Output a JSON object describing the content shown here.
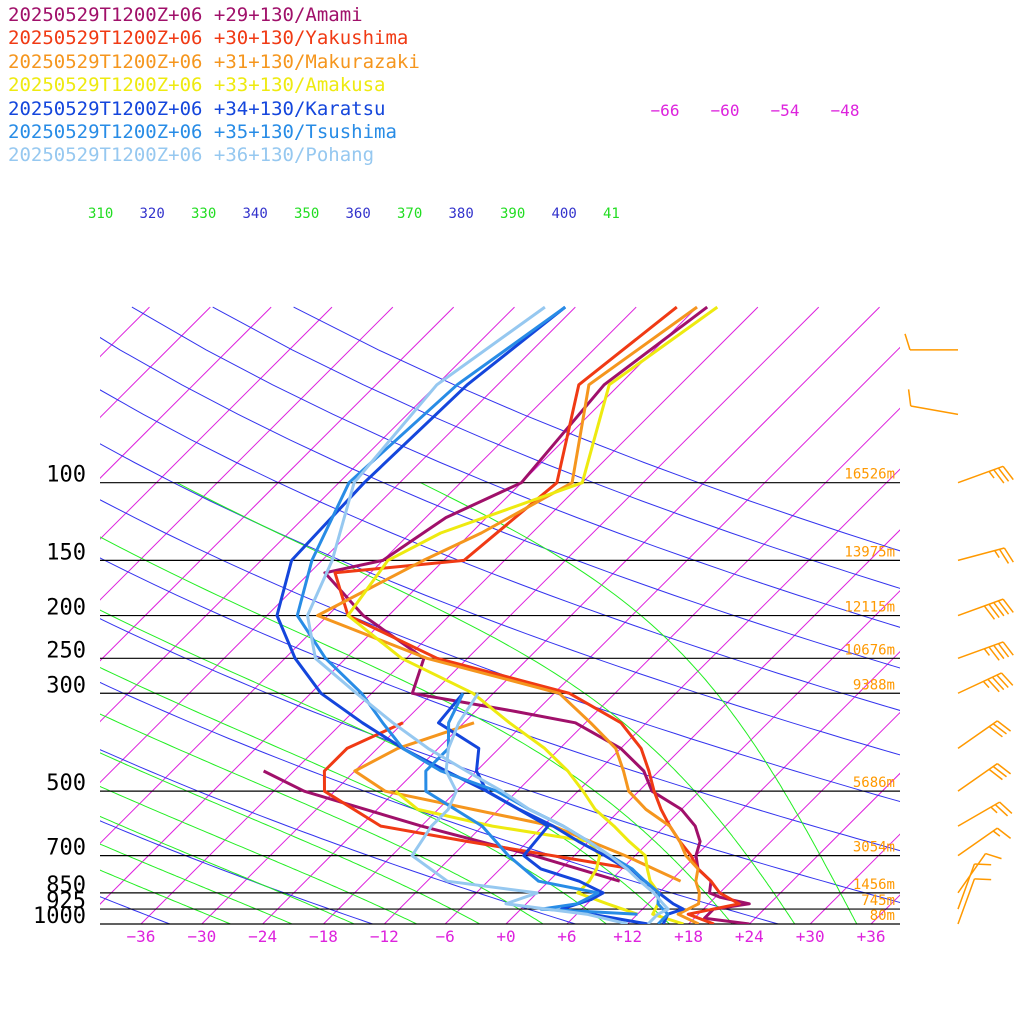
{
  "chart_data": {
    "type": "line",
    "chart_kind": "skew-T log-p sounding",
    "legend": [
      {
        "label": "20250529T1200Z+06 +29+130/Amami",
        "color": "#a0106a"
      },
      {
        "label": "20250529T1200Z+06 +30+130/Yakushima",
        "color": "#f03a14"
      },
      {
        "label": "20250529T1200Z+06 +31+130/Makurazaki",
        "color": "#f5961e"
      },
      {
        "label": "20250529T1200Z+06 +33+130/Amakusa",
        "color": "#eeea10"
      },
      {
        "label": "20250529T1200Z+06 +34+130/Karatsu",
        "color": "#1446dc"
      },
      {
        "label": "20250529T1200Z+06 +35+130/Tsushima",
        "color": "#288ce6"
      },
      {
        "label": "20250529T1200Z+06 +36+130/Pohang",
        "color": "#96c8f0"
      }
    ],
    "pressure_levels": [
      {
        "p": 100,
        "label": "100",
        "height": "16526m"
      },
      {
        "p": 150,
        "label": "150",
        "height": "13975m"
      },
      {
        "p": 200,
        "label": "200",
        "height": "12115m"
      },
      {
        "p": 250,
        "label": "250",
        "height": "10676m"
      },
      {
        "p": 300,
        "label": "300",
        "height": "9388m"
      },
      {
        "p": 500,
        "label": "500",
        "height": "5686m"
      },
      {
        "p": 700,
        "label": "700",
        "height": "3054m"
      },
      {
        "p": 850,
        "label": "850",
        "height": "1456m"
      },
      {
        "p": 925,
        "label": "925",
        "height": "745m"
      },
      {
        "p": 1000,
        "label": "1000",
        "height": "80m"
      }
    ],
    "temperature_ticks": [
      {
        "t": -36,
        "label": "−36"
      },
      {
        "t": -30,
        "label": "−30"
      },
      {
        "t": -24,
        "label": "−24"
      },
      {
        "t": -18,
        "label": "−18"
      },
      {
        "t": -12,
        "label": "−12"
      },
      {
        "t": -6,
        "label": "−6"
      },
      {
        "t": 0,
        "label": "+0"
      },
      {
        "t": 6,
        "label": "+6"
      },
      {
        "t": 12,
        "label": "+12"
      },
      {
        "t": 18,
        "label": "+18"
      },
      {
        "t": 24,
        "label": "+24"
      },
      {
        "t": 30,
        "label": "+30"
      },
      {
        "t": 36,
        "label": "+36"
      }
    ],
    "upper_isotherm_labels": [
      "−66",
      "−60",
      "−54",
      "−48"
    ],
    "theta_labels": [
      {
        "label": "310",
        "color": "#22dd22"
      },
      {
        "label": "320",
        "color": "#3333cc"
      },
      {
        "label": "330",
        "color": "#22dd22"
      },
      {
        "label": "340",
        "color": "#3333cc"
      },
      {
        "label": "350",
        "color": "#22dd22"
      },
      {
        "label": "360",
        "color": "#3333cc"
      },
      {
        "label": "370",
        "color": "#22dd22"
      },
      {
        "label": "380",
        "color": "#3333cc"
      },
      {
        "label": "390",
        "color": "#22dd22"
      },
      {
        "label": "400",
        "color": "#3333cc"
      },
      {
        "label": "41",
        "color": "#22dd22"
      }
    ],
    "colors": {
      "isobar": "#000000",
      "isotherm": "#dd22dd",
      "dry_adiabat": "#3333ee",
      "moist_adiabat": "#22ee22",
      "height_label": "#ff9900",
      "wind_barb": "#ff9900"
    },
    "series": [
      {
        "name": "20250529T1200Z+06 +29+130/Amami",
        "temperature": [
          [
            1000,
            24
          ],
          [
            970,
            19
          ],
          [
            925,
            19
          ],
          [
            900,
            22
          ],
          [
            870,
            18.5
          ],
          [
            850,
            17
          ],
          [
            800,
            16
          ],
          [
            750,
            13.5
          ],
          [
            700,
            12
          ],
          [
            650,
            11
          ],
          [
            600,
            9
          ],
          [
            550,
            6
          ],
          [
            500,
            1.3
          ],
          [
            450,
            -1.5
          ],
          [
            400,
            -6
          ],
          [
            350,
            -13
          ],
          [
            330,
            -20
          ],
          [
            300,
            -32
          ],
          [
            250,
            -34.3
          ],
          [
            200,
            -44.5
          ],
          [
            160,
            -52.5
          ],
          [
            150,
            -48
          ],
          [
            120,
            -46
          ],
          [
            100,
            -42
          ],
          [
            60,
            -43.5
          ],
          [
            40,
            -41
          ]
        ],
        "dewpoint": [
          [
            800,
            7
          ],
          [
            700,
            -4
          ],
          [
            600,
            -18
          ],
          [
            500,
            -33
          ],
          [
            450,
            -39
          ]
        ]
      },
      {
        "name": "20250529T1200Z+06 +30+130/Yakushima",
        "temperature": [
          [
            1000,
            20.5
          ],
          [
            950,
            17
          ],
          [
            900,
            21
          ],
          [
            850,
            18
          ],
          [
            800,
            16
          ],
          [
            750,
            13.5
          ],
          [
            700,
            11.5
          ],
          [
            650,
            9
          ],
          [
            600,
            6.5
          ],
          [
            550,
            4
          ],
          [
            500,
            1.5
          ],
          [
            450,
            -1
          ],
          [
            400,
            -4
          ],
          [
            350,
            -8.5
          ],
          [
            300,
            -16.5
          ],
          [
            250,
            -33
          ],
          [
            200,
            -46
          ],
          [
            160,
            -51.5
          ],
          [
            150,
            -40
          ],
          [
            100,
            -38.5
          ],
          [
            60,
            -46
          ],
          [
            40,
            -44
          ]
        ],
        "dewpoint": [
          [
            750,
            7
          ],
          [
            650,
            -12
          ],
          [
            600,
            -22
          ],
          [
            500,
            -31
          ],
          [
            450,
            -33
          ],
          [
            400,
            -33
          ],
          [
            350,
            -30
          ]
        ]
      },
      {
        "name": "20250529T1200Z+06 +31+130/Makurazaki",
        "temperature": [
          [
            1000,
            19
          ],
          [
            950,
            16
          ],
          [
            900,
            17
          ],
          [
            850,
            16
          ],
          [
            800,
            14.5
          ],
          [
            750,
            13.5
          ],
          [
            700,
            11
          ],
          [
            650,
            9
          ],
          [
            600,
            6.5
          ],
          [
            550,
            2.5
          ],
          [
            500,
            -1
          ],
          [
            450,
            -3.5
          ],
          [
            400,
            -6.5
          ],
          [
            350,
            -11.5
          ],
          [
            300,
            -17.5
          ],
          [
            250,
            -34
          ],
          [
            200,
            -49
          ],
          [
            150,
            -44
          ],
          [
            130,
            -41
          ],
          [
            100,
            -37
          ],
          [
            60,
            -45
          ],
          [
            40,
            -42
          ]
        ],
        "dewpoint": [
          [
            800,
            13
          ],
          [
            700,
            5
          ],
          [
            600,
            -5
          ],
          [
            500,
            -25
          ],
          [
            450,
            -30
          ],
          [
            400,
            -28
          ],
          [
            350,
            -23
          ]
        ]
      },
      {
        "name": "20250529T1200Z+06 +33+130/Amakusa",
        "temperature": [
          [
            1000,
            17.5
          ],
          [
            950,
            13.5
          ],
          [
            900,
            13
          ],
          [
            850,
            12
          ],
          [
            800,
            10
          ],
          [
            750,
            8.5
          ],
          [
            700,
            7
          ],
          [
            650,
            4
          ],
          [
            600,
            1
          ],
          [
            550,
            -2.5
          ],
          [
            500,
            -5.5
          ],
          [
            450,
            -9
          ],
          [
            400,
            -13.5
          ],
          [
            350,
            -19.5
          ],
          [
            300,
            -26
          ],
          [
            250,
            -36.5
          ],
          [
            200,
            -46
          ],
          [
            150,
            -47.5
          ],
          [
            130,
            -45
          ],
          [
            100,
            -36
          ],
          [
            60,
            -43
          ],
          [
            40,
            -40
          ]
        ],
        "dewpoint": [
          [
            950,
            12
          ],
          [
            900,
            8
          ],
          [
            850,
            4
          ],
          [
            800,
            4
          ],
          [
            750,
            3.5
          ],
          [
            700,
            2.5
          ],
          [
            650,
            0
          ],
          [
            600,
            -11
          ],
          [
            550,
            -20
          ],
          [
            500,
            -24
          ]
        ]
      },
      {
        "name": "20250529T1200Z+06 +34+130/Karatsu",
        "temperature": [
          [
            1000,
            15.5
          ],
          [
            950,
            15
          ],
          [
            925,
            16
          ],
          [
            900,
            14.5
          ],
          [
            850,
            12
          ],
          [
            800,
            9.5
          ],
          [
            750,
            6.5
          ],
          [
            700,
            3
          ],
          [
            650,
            -1
          ],
          [
            600,
            -5
          ],
          [
            550,
            -10
          ],
          [
            500,
            -15
          ],
          [
            450,
            -21
          ],
          [
            400,
            -27.5
          ],
          [
            350,
            -34
          ],
          [
            300,
            -41
          ],
          [
            250,
            -47
          ],
          [
            200,
            -53
          ],
          [
            150,
            -57
          ],
          [
            100,
            -57.5
          ],
          [
            60,
            -57
          ],
          [
            40,
            -55
          ]
        ],
        "dewpoint": [
          [
            1000,
            14
          ],
          [
            925,
            4
          ],
          [
            880,
            6
          ],
          [
            850,
            6.5
          ],
          [
            800,
            3
          ],
          [
            750,
            -2
          ],
          [
            700,
            -5
          ],
          [
            600,
            -5.5
          ],
          [
            500,
            -15
          ],
          [
            450,
            -18
          ],
          [
            400,
            -20
          ],
          [
            350,
            -26.5
          ],
          [
            300,
            -27
          ]
        ]
      },
      {
        "name": "20250529T1200Z+06 +35+130/Tsushima",
        "temperature": [
          [
            1000,
            15
          ],
          [
            950,
            15
          ],
          [
            925,
            14
          ],
          [
            900,
            13
          ],
          [
            850,
            12
          ],
          [
            800,
            9.5
          ],
          [
            750,
            7
          ],
          [
            700,
            3.5
          ],
          [
            650,
            0
          ],
          [
            600,
            -4
          ],
          [
            550,
            -9
          ],
          [
            500,
            -14
          ],
          [
            450,
            -21.5
          ],
          [
            400,
            -27.5
          ],
          [
            350,
            -32
          ],
          [
            300,
            -37
          ],
          [
            250,
            -44
          ],
          [
            200,
            -51
          ],
          [
            150,
            -55
          ],
          [
            100,
            -59
          ],
          [
            60,
            -58
          ],
          [
            40,
            -55
          ]
        ],
        "dewpoint": [
          [
            950,
            12
          ],
          [
            925,
            2
          ],
          [
            900,
            5
          ],
          [
            850,
            6
          ],
          [
            800,
            -1
          ],
          [
            700,
            -6.5
          ],
          [
            600,
            -12
          ],
          [
            500,
            -21
          ],
          [
            450,
            -23
          ],
          [
            400,
            -23
          ],
          [
            350,
            -25.5
          ],
          [
            300,
            -27
          ]
        ]
      },
      {
        "name": "20250529T1200Z+06 +36+130/Pohang",
        "temperature": [
          [
            1000,
            14
          ],
          [
            950,
            14
          ],
          [
            925,
            14.5
          ],
          [
            900,
            13.5
          ],
          [
            850,
            11.5
          ],
          [
            800,
            9
          ],
          [
            750,
            6.5
          ],
          [
            700,
            3.5
          ],
          [
            650,
            0
          ],
          [
            600,
            -4
          ],
          [
            550,
            -9
          ],
          [
            500,
            -13.5
          ],
          [
            450,
            -19
          ],
          [
            400,
            -25
          ],
          [
            350,
            -31
          ],
          [
            300,
            -37.5
          ],
          [
            250,
            -45
          ],
          [
            200,
            -50
          ],
          [
            150,
            -53
          ],
          [
            100,
            -58.5
          ],
          [
            60,
            -60
          ],
          [
            40,
            -57
          ]
        ],
        "dewpoint": [
          [
            1000,
            12
          ],
          [
            950,
            7
          ],
          [
            900,
            -2
          ],
          [
            850,
            0
          ],
          [
            800,
            -10
          ],
          [
            700,
            -16
          ],
          [
            600,
            -17
          ],
          [
            550,
            -17
          ],
          [
            500,
            -18
          ],
          [
            450,
            -21
          ],
          [
            400,
            -23
          ],
          [
            350,
            -24.5
          ],
          [
            300,
            -25.5
          ]
        ]
      }
    ],
    "wind_barbs": [
      {
        "p": 1000,
        "direction_deg": 200,
        "speed_kt": 10
      },
      {
        "p": 925,
        "direction_deg": 200,
        "speed_kt": 10
      },
      {
        "p": 850,
        "direction_deg": 215,
        "speed_kt": 10
      },
      {
        "p": 700,
        "direction_deg": 235,
        "speed_kt": 15
      },
      {
        "p": 600,
        "direction_deg": 240,
        "speed_kt": 25
      },
      {
        "p": 500,
        "direction_deg": 235,
        "speed_kt": 30
      },
      {
        "p": 400,
        "direction_deg": 235,
        "speed_kt": 30
      },
      {
        "p": 300,
        "direction_deg": 245,
        "speed_kt": 45
      },
      {
        "p": 250,
        "direction_deg": 250,
        "speed_kt": 45
      },
      {
        "p": 200,
        "direction_deg": 250,
        "speed_kt": 50
      },
      {
        "p": 150,
        "direction_deg": 255,
        "speed_kt": 25
      },
      {
        "p": 100,
        "direction_deg": 250,
        "speed_kt": 35
      },
      {
        "p": 70,
        "direction_deg": 100,
        "speed_kt": 10
      },
      {
        "p": 50,
        "direction_deg": 90,
        "speed_kt": 10
      }
    ]
  }
}
